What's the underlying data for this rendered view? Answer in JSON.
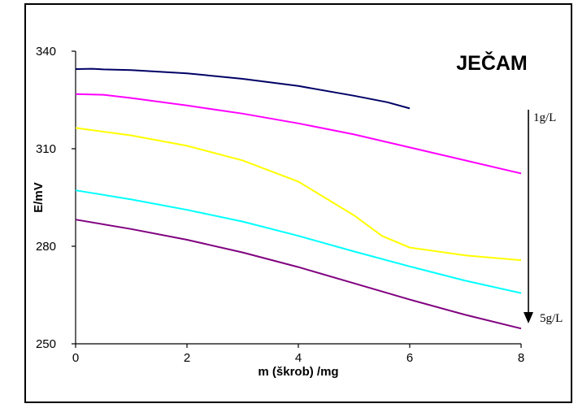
{
  "chart_data": {
    "type": "line",
    "title": "JEČAM",
    "xlabel": "m (škrob) /mg",
    "ylabel": "E/mV",
    "xlim": [
      0,
      8
    ],
    "ylim": [
      250,
      340
    ],
    "x_ticks": [
      "0",
      "2",
      "4",
      "6",
      "8"
    ],
    "y_ticks": [
      "250",
      "280",
      "310",
      "340"
    ],
    "grid": false,
    "legend": "none",
    "annotations": {
      "top": "1g/L",
      "bottom": "5g/L"
    },
    "series": [
      {
        "color": "#000066",
        "points": [
          [
            0,
            334.5
          ],
          [
            0.3,
            334.6
          ],
          [
            0.5,
            334.4
          ],
          [
            1,
            334.2
          ],
          [
            2,
            333.2
          ],
          [
            3,
            331.5
          ],
          [
            4,
            329.3
          ],
          [
            5,
            326.3
          ],
          [
            5.6,
            324.3
          ],
          [
            6,
            322.4
          ]
        ]
      },
      {
        "color": "#ff00ff",
        "points": [
          [
            0,
            326.8
          ],
          [
            0.5,
            326.6
          ],
          [
            1,
            325.6
          ],
          [
            2,
            323.3
          ],
          [
            3,
            320.8
          ],
          [
            4,
            317.8
          ],
          [
            5,
            314.4
          ],
          [
            6,
            310.4
          ],
          [
            7,
            306.4
          ],
          [
            8,
            302.4
          ]
        ]
      },
      {
        "color": "#ffff00",
        "points": [
          [
            0,
            316.4
          ],
          [
            1,
            314.1
          ],
          [
            2,
            310.9
          ],
          [
            3,
            306.4
          ],
          [
            4,
            299.9
          ],
          [
            5,
            289.5
          ],
          [
            5.5,
            283.2
          ],
          [
            6,
            279.6
          ],
          [
            7,
            277.2
          ],
          [
            8,
            275.7
          ]
        ]
      },
      {
        "color": "#00ffff",
        "points": [
          [
            0,
            297.2
          ],
          [
            1,
            294.4
          ],
          [
            2,
            291.2
          ],
          [
            3,
            287.6
          ],
          [
            4,
            283.2
          ],
          [
            5,
            278.4
          ],
          [
            6,
            273.8
          ],
          [
            7,
            269.4
          ],
          [
            8,
            265.6
          ]
        ]
      },
      {
        "color": "#800080",
        "points": [
          [
            0,
            288.2
          ],
          [
            1,
            285.3
          ],
          [
            2,
            282
          ],
          [
            3,
            278.1
          ],
          [
            4,
            273.6
          ],
          [
            5,
            268.6
          ],
          [
            6,
            263.6
          ],
          [
            7,
            258.9
          ],
          [
            8,
            254.7
          ]
        ]
      }
    ]
  }
}
